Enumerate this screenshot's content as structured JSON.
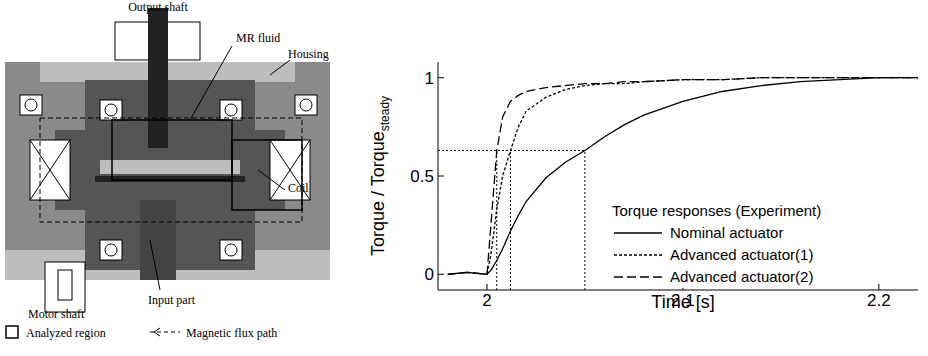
{
  "diagram": {
    "labels": {
      "output_shaft": "Output shaft",
      "mr_fluid": "MR fluid",
      "housing": "Housing",
      "coil": "Coil",
      "motor_shaft": "Motor shaft",
      "input_part": "Input part"
    },
    "key": {
      "analyzed_region": "Analyzed region",
      "flux_path": "Magnetic flux path"
    }
  },
  "chart_data": {
    "type": "line",
    "x_label": "Time [s]",
    "y_label": "Torque / Torque",
    "y_label_subscript": "steady",
    "legend_title": "Torque responses (Experiment)",
    "x": [
      1.98,
      1.99,
      2.0,
      2.002,
      2.005,
      2.008,
      2.012,
      2.016,
      2.02,
      2.03,
      2.04,
      2.05,
      2.06,
      2.07,
      2.08,
      2.1,
      2.12,
      2.14,
      2.16,
      2.18,
      2.2,
      2.22
    ],
    "series": [
      {
        "name": "Nominal actuator",
        "color": "#000000",
        "line_style": "solid",
        "values": [
          0,
          0.01,
          0,
          0.02,
          0.07,
          0.13,
          0.22,
          0.3,
          0.37,
          0.49,
          0.57,
          0.63,
          0.7,
          0.76,
          0.81,
          0.88,
          0.93,
          0.96,
          0.98,
          0.99,
          1.0,
          1.0
        ]
      },
      {
        "name": "Advanced actuator(1)",
        "color": "#000000",
        "line_style": "dotted",
        "values": [
          0,
          0.01,
          0,
          0.1,
          0.33,
          0.5,
          0.63,
          0.75,
          0.83,
          0.9,
          0.94,
          0.96,
          0.97,
          0.97,
          0.98,
          0.99,
          0.99,
          1.0,
          1.0,
          1.0,
          1.0,
          1.0
        ]
      },
      {
        "name": "Advanced actuator(2)",
        "color": "#000000",
        "line_style": "dashed",
        "values": [
          0,
          0.01,
          0,
          0.25,
          0.63,
          0.8,
          0.88,
          0.91,
          0.93,
          0.95,
          0.96,
          0.97,
          0.97,
          0.98,
          0.98,
          0.99,
          0.99,
          1.0,
          1.0,
          1.0,
          1.0,
          1.0
        ]
      }
    ],
    "xlim": [
      1.975,
      2.22
    ],
    "ylim": [
      -0.08,
      1.08
    ],
    "xticks": [
      2,
      2.1,
      2.2
    ],
    "yticks": [
      0,
      0.5,
      1
    ],
    "time_constant": {
      "y": 0.63,
      "x": [
        2.005,
        2.012,
        2.05
      ]
    },
    "grid": false
  }
}
